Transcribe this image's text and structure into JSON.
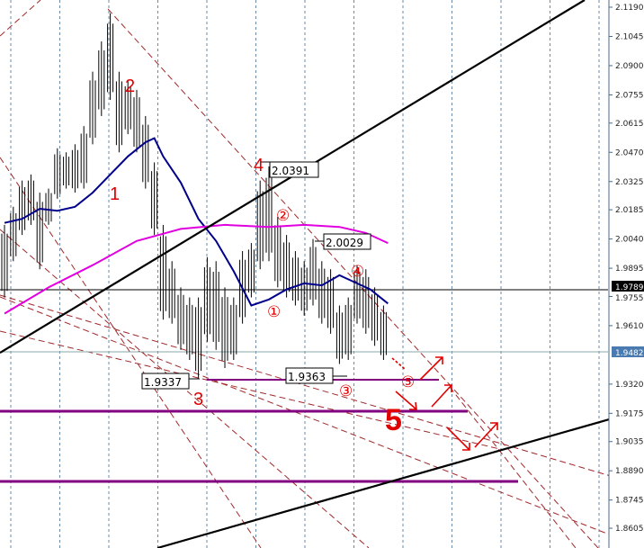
{
  "chart_data": {
    "type": "bar",
    "subtype": "ohlc-bars",
    "title": "",
    "xlabel": "",
    "ylabel": "",
    "ylim": [
      1.854,
      2.1225
    ],
    "grid": "vertical dotted",
    "y_ticks": [
      "2.1190",
      "2.1045",
      "2.0900",
      "2.0755",
      "2.0615",
      "2.0470",
      "2.0325",
      "2.0185",
      "2.0040",
      "1.9895",
      "1.9755",
      "1.9610",
      "1.9320",
      "1.9175",
      "1.9035",
      "1.8890",
      "1.8745",
      "1.8605"
    ],
    "y_tick_values": [
      2.119,
      2.1045,
      2.09,
      2.0755,
      2.0615,
      2.047,
      2.0325,
      2.0185,
      2.004,
      1.9895,
      1.9755,
      1.961,
      1.932,
      1.9175,
      1.9035,
      1.889,
      1.8745,
      1.8605
    ],
    "bars": [
      [
        2.011,
        1.975
      ],
      [
        2.02,
        1.993
      ],
      [
        2.033,
        2.006
      ],
      [
        2.036,
        2.011
      ],
      [
        2.027,
        1.989
      ],
      [
        2.029,
        2.011
      ],
      [
        2.049,
        2.024
      ],
      [
        2.047,
        2.029
      ],
      [
        2.051,
        2.027
      ],
      [
        2.06,
        2.029
      ],
      [
        2.087,
        2.051
      ],
      [
        2.102,
        2.065
      ],
      [
        2.116,
        2.073
      ],
      [
        2.087,
        2.047
      ],
      [
        2.083,
        2.056
      ],
      [
        2.078,
        2.047
      ],
      [
        2.065,
        2.029
      ],
      [
        2.042,
        2.006
      ],
      [
        2.011,
        1.964
      ],
      [
        1.993,
        1.962
      ],
      [
        1.98,
        1.949
      ],
      [
        1.975,
        1.944
      ],
      [
        1.975,
        1.935
      ],
      [
        1.995,
        1.953
      ],
      [
        1.993,
        1.949
      ],
      [
        1.98,
        1.94
      ],
      [
        1.975,
        1.944
      ],
      [
        1.998,
        1.962
      ],
      [
        2.002,
        1.975
      ],
      [
        2.033,
        1.989
      ],
      [
        2.04,
        1.993
      ],
      [
        2.015,
        1.98
      ],
      [
        2.006,
        1.975
      ],
      [
        1.998,
        1.971
      ],
      [
        1.993,
        1.966
      ],
      [
        2.004,
        1.971
      ],
      [
        1.993,
        1.962
      ],
      [
        1.989,
        1.957
      ],
      [
        1.971,
        1.942
      ],
      [
        1.975,
        1.944
      ],
      [
        1.991,
        1.962
      ],
      [
        1.989,
        1.957
      ],
      [
        1.98,
        1.951
      ],
      [
        1.971,
        1.944
      ]
    ],
    "series": [
      {
        "color": "#00008b",
        "points": [
          [
            0,
            2.012
          ],
          [
            2,
            2.014
          ],
          [
            4,
            2.019
          ],
          [
            6,
            2.018
          ],
          [
            8,
            2.02
          ],
          [
            10,
            2.027
          ],
          [
            12,
            2.036
          ],
          [
            14,
            2.045
          ],
          [
            16,
            2.052
          ],
          [
            17,
            2.054
          ],
          [
            18,
            2.045
          ],
          [
            20,
            2.032
          ],
          [
            22,
            2.014
          ],
          [
            24,
            2.003
          ],
          [
            26,
            1.988
          ],
          [
            28,
            1.971
          ],
          [
            30,
            1.974
          ],
          [
            32,
            1.979
          ],
          [
            34,
            1.982
          ],
          [
            36,
            1.981
          ],
          [
            38,
            1.986
          ],
          [
            39.5,
            1.983
          ],
          [
            41.5,
            1.979
          ],
          [
            43.5,
            1.972
          ]
        ]
      },
      {
        "color": "#e000e0",
        "points": [
          [
            0,
            1.967
          ],
          [
            5,
            1.98
          ],
          [
            10,
            1.991
          ],
          [
            15,
            2.003
          ],
          [
            20,
            2.009
          ],
          [
            25,
            2.011
          ],
          [
            30,
            2.01
          ],
          [
            34,
            2.011
          ],
          [
            38,
            2.01
          ],
          [
            41,
            2.007
          ],
          [
            43.5,
            2.002
          ]
        ]
      }
    ],
    "horizontal_levels": {
      "bid_line": {
        "value": "1.9789",
        "color": "#000000"
      },
      "ask_line": {
        "value": "1.9482",
        "color": "#4a7bb0"
      }
    },
    "support_levels_color": "#800080",
    "trendline_color": "#000000",
    "channel_color": "#a0282a",
    "annotations": {
      "waves": [
        "1",
        "2",
        "3",
        "4",
        "5"
      ],
      "subwaves": [
        "①",
        "②",
        "③",
        "④",
        "⑤"
      ],
      "price_boxes": [
        "2.0391",
        "2.0029",
        "1.9363",
        "1.9337"
      ]
    }
  }
}
